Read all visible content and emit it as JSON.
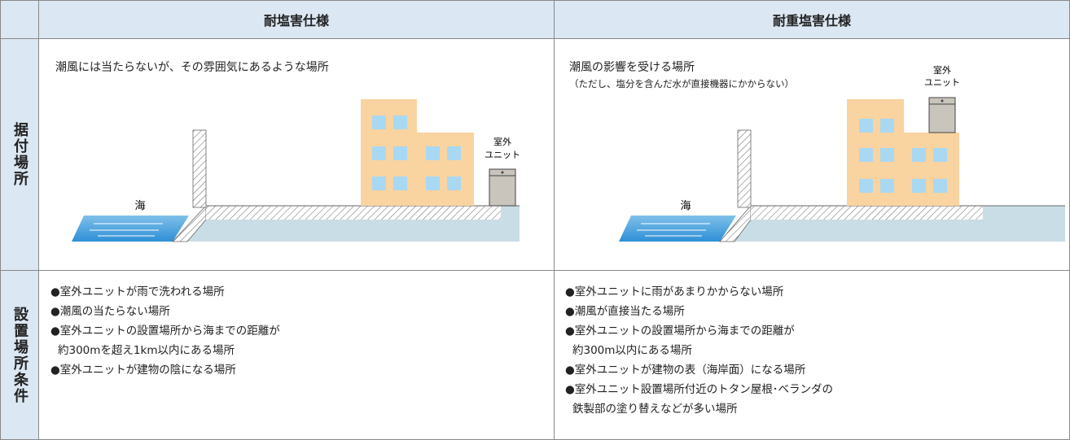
{
  "table": {
    "header": [
      "耐塩害仕様",
      "耐重塩害仕様"
    ],
    "rows": [
      {
        "label": "据付場所",
        "cells": [
          {
            "caption": "潮風には当たらないが、その雰囲気にあるような場所",
            "sea": "海",
            "unit": [
              "室外",
              "ユニット"
            ]
          },
          {
            "caption": "潮風の影響を受ける場所",
            "note": "（ただし、塩分を含んだ水が直接機器にかからない）",
            "sea": "海",
            "unit": [
              "室外",
              "ユニット"
            ]
          }
        ]
      },
      {
        "label": "設置場所条件",
        "cells": [
          [
            [
              "●室外ユニットが雨で洗われる場所"
            ],
            [
              "●潮風の当たらない場所"
            ],
            [
              "●室外ユニットの設置場所から海までの距離が",
              "約300mを超え1km以内にある場所"
            ],
            [
              "●室外ユニットが建物の陰になる場所"
            ]
          ],
          [
            [
              "●室外ユニットに雨があまりかからない場所"
            ],
            [
              "●潮風が直接当たる場所"
            ],
            [
              "●室外ユニットの設置場所から海までの距離が",
              "約300m以内にある場所"
            ],
            [
              "●室外ユニットが建物の表（海岸面）になる場所"
            ],
            [
              "●室外ユニット設置場所付近のトタン屋根･ベランダの",
              "鉄製部の塗り替えなどが多い場所"
            ]
          ]
        ]
      }
    ]
  }
}
